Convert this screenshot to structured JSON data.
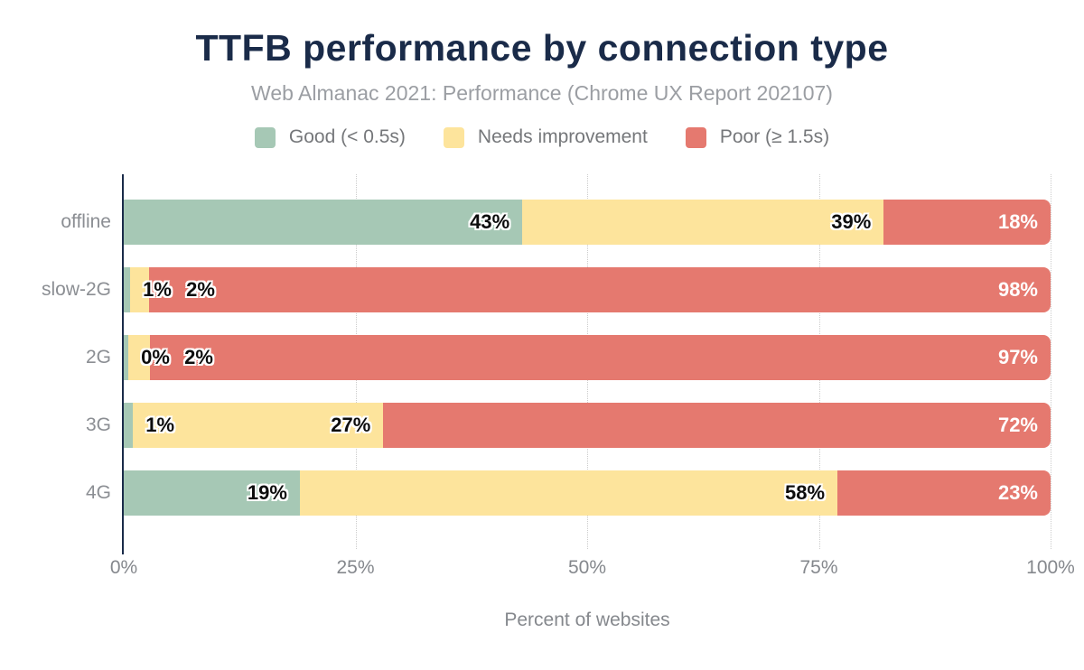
{
  "title": "TTFB performance by connection type",
  "subtitle": "Web Almanac 2021: Performance (Chrome UX Report 202107)",
  "legend": [
    {
      "label": "Good (< 0.5s)",
      "color": "#a6c8b5"
    },
    {
      "label": "Needs improvement",
      "color": "#fde49c"
    },
    {
      "label": "Poor (≥ 1.5s)",
      "color": "#e5796f"
    }
  ],
  "chart_data": {
    "type": "bar",
    "orientation": "horizontal",
    "stacked": true,
    "title": "TTFB performance by connection type",
    "subtitle": "Web Almanac 2021: Performance (Chrome UX Report 202107)",
    "categories": [
      "offline",
      "slow-2G",
      "2G",
      "3G",
      "4G"
    ],
    "series": [
      {
        "name": "Good (< 0.5s)",
        "color": "#a6c8b5",
        "values": [
          43,
          1,
          0,
          1,
          19
        ],
        "render_widths": [
          43,
          0.7,
          0.5,
          1,
          19
        ],
        "label_style": "dark"
      },
      {
        "name": "Needs improvement",
        "color": "#fde49c",
        "values": [
          39,
          2,
          2,
          27,
          58
        ],
        "render_widths": [
          39,
          2,
          2.3,
          27,
          58
        ],
        "label_style": "dark"
      },
      {
        "name": "Poor (≥ 1.5s)",
        "color": "#e5796f",
        "values": [
          18,
          98,
          97,
          72,
          23
        ],
        "render_widths": [
          18,
          97.3,
          97.2,
          72,
          23
        ],
        "label_style": "light"
      }
    ],
    "value_label_suffix": "%",
    "xlabel": "Percent of websites",
    "x_ticks": [
      "0%",
      "25%",
      "50%",
      "75%",
      "100%"
    ],
    "x_tick_positions": [
      0,
      25,
      50,
      75,
      100
    ],
    "xlim": [
      0,
      100
    ],
    "grid": "dotted-vertical",
    "legend_position": "top-center"
  },
  "colors": {
    "background": "#ffffff",
    "title": "#1a2b49",
    "axis_line": "#1a2b49",
    "subtitle_text": "#9b9ea3",
    "legend_text": "#75777a",
    "category_text": "#8b8e93",
    "tick_text": "#85888d",
    "gridline": "#cccccc",
    "good": "#a6c8b5",
    "needs_improvement": "#fde49c",
    "poor": "#e5796f"
  }
}
